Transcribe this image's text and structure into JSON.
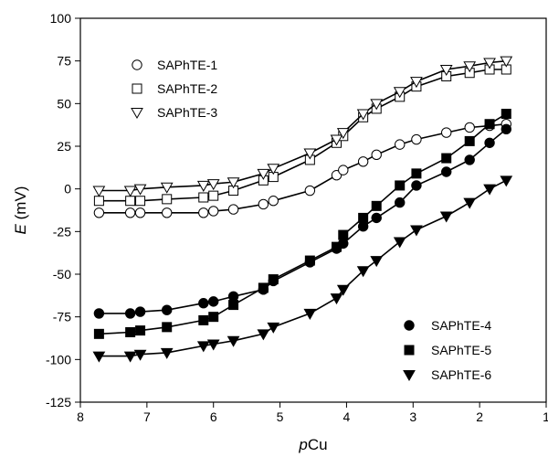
{
  "chart_data": {
    "type": "line",
    "xlabel_italic": "p",
    "xlabel_rest": "Cu",
    "ylabel_italic": "E",
    "ylabel_rest": " (mV)",
    "xlim": [
      8,
      1
    ],
    "ylim": [
      -125,
      100
    ],
    "x_ticks": [
      8,
      7,
      6,
      5,
      4,
      3,
      2,
      1
    ],
    "y_ticks": [
      100,
      75,
      50,
      25,
      0,
      -25,
      -50,
      -75,
      -100,
      -125
    ],
    "x": [
      7.72,
      7.25,
      7.1,
      6.7,
      6.15,
      6.0,
      5.7,
      5.25,
      5.1,
      4.55,
      4.15,
      4.05,
      3.75,
      3.55,
      3.2,
      2.95,
      2.5,
      2.15,
      1.85,
      1.6
    ],
    "series": [
      {
        "name": "SAPhTE-1",
        "marker": "circle-open",
        "values": [
          -14,
          -14,
          -14,
          -14,
          -14,
          -13,
          -12,
          -9,
          -7,
          -1,
          8,
          11,
          16,
          20,
          26,
          29,
          33,
          36,
          37,
          38
        ]
      },
      {
        "name": "SAPhTE-2",
        "marker": "square-open",
        "values": [
          -7,
          -7,
          -7,
          -6,
          -5,
          -4,
          -1,
          5,
          7,
          17,
          27,
          31,
          42,
          47,
          54,
          60,
          66,
          68,
          70,
          70
        ]
      },
      {
        "name": "SAPhTE-3",
        "marker": "triangle-down-open",
        "values": [
          -1,
          -1,
          0,
          1,
          2,
          3,
          4,
          9,
          12,
          21,
          29,
          33,
          44,
          50,
          57,
          63,
          70,
          72,
          74,
          75
        ]
      },
      {
        "name": "SAPhTE-4",
        "marker": "circle-filled",
        "values": [
          -73,
          -73,
          -72,
          -71,
          -67,
          -66,
          -63,
          -59,
          -54,
          -43,
          -35,
          -32,
          -22,
          -17,
          -8,
          2,
          10,
          17,
          27,
          35
        ]
      },
      {
        "name": "SAPhTE-5",
        "marker": "square-filled",
        "values": [
          -85,
          -84,
          -83,
          -81,
          -77,
          -75,
          -68,
          -58,
          -53,
          -42,
          -34,
          -27,
          -17,
          -10,
          2,
          9,
          18,
          28,
          38,
          44
        ]
      },
      {
        "name": "SAPhTE-6",
        "marker": "triangle-down-filled",
        "values": [
          -98,
          -98,
          -97,
          -96,
          -92,
          -91,
          -89,
          -85,
          -81,
          -73,
          -64,
          -59,
          -48,
          -42,
          -31,
          -24,
          -16,
          -8,
          0,
          5
        ]
      }
    ],
    "grid": false
  }
}
